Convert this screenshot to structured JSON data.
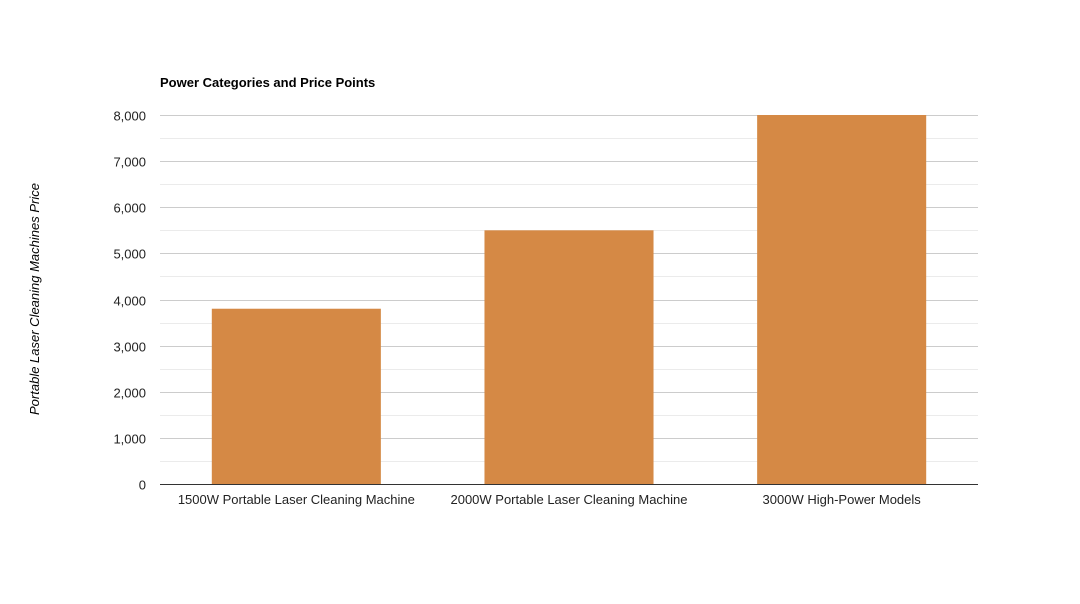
{
  "chart_data": {
    "type": "bar",
    "title": "Power Categories and Price Points",
    "xlabel": "",
    "ylabel": "Portable Laser Cleaning Machines Price",
    "categories": [
      "1500W Portable Laser Cleaning Machine",
      "2000W Portable Laser Cleaning Machine",
      "3000W High-Power Models"
    ],
    "series": [
      {
        "name": "Portable Laser Cleaning Machines Price",
        "values": [
          3800,
          5500,
          8000
        ]
      }
    ],
    "ylim": [
      0,
      8000
    ],
    "yticks": [
      0,
      1000,
      2000,
      3000,
      4000,
      5000,
      6000,
      7000,
      8000
    ],
    "ytick_labels": [
      "0",
      "1,000",
      "2,000",
      "3,000",
      "4,000",
      "5,000",
      "6,000",
      "7,000",
      "8,000"
    ],
    "grid": true,
    "legend": "none",
    "colors": {
      "bar": "#d58945",
      "grid_major": "#cccccc",
      "grid_minor": "#ebebeb",
      "axis": "#333333",
      "text": "#222222",
      "title": "#000000"
    }
  }
}
